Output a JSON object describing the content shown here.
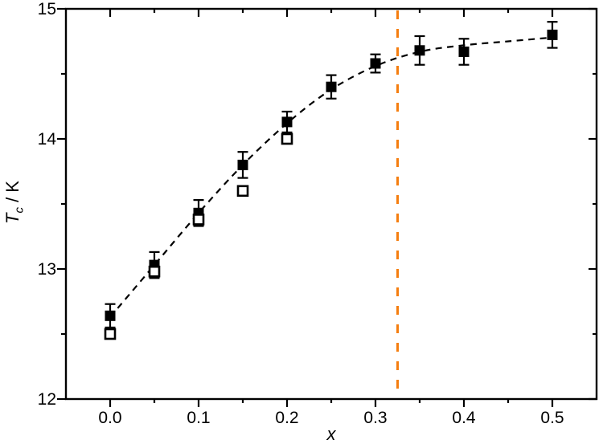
{
  "figure": {
    "background": "#ffffff",
    "axis_color": "#000000",
    "accent_orange": "#F57E0F"
  },
  "axes": {
    "x": {
      "label": "x",
      "tick_labels": [
        "0.0",
        "0.1",
        "0.2",
        "0.3",
        "0.4",
        "0.5"
      ]
    },
    "y": {
      "symbol": "T",
      "subscript": "c",
      "suffix": " / K",
      "tick_labels": [
        "12",
        "13",
        "14",
        "15"
      ]
    }
  },
  "chart_data": {
    "type": "scatter",
    "title": "",
    "xlabel": "x",
    "ylabel": "Tc / K",
    "xlim": [
      -0.05,
      0.55
    ],
    "ylim": [
      12,
      15
    ],
    "grid": false,
    "legend": "none",
    "x_major_ticks": [
      0.0,
      0.1,
      0.2,
      0.3,
      0.4,
      0.5
    ],
    "x_tick_labels": [
      "0.0",
      "0.1",
      "0.2",
      "0.3",
      "0.4",
      "0.5"
    ],
    "x_minor_ticks": [
      0.05,
      0.15,
      0.25,
      0.35,
      0.45
    ],
    "y_major_ticks": [
      12,
      13,
      14,
      15
    ],
    "y_tick_labels": [
      "12",
      "13",
      "14",
      "15"
    ],
    "y_minor_ticks": [
      12.5,
      13.5,
      14.5
    ],
    "series": [
      {
        "name": "Tc-filled-squares",
        "type": "scatter",
        "marker": "filled-square",
        "color": "#000000",
        "x": [
          0.0,
          0.05,
          0.1,
          0.15,
          0.2,
          0.25,
          0.3,
          0.35,
          0.4,
          0.5
        ],
        "y": [
          12.64,
          13.03,
          13.43,
          13.8,
          14.13,
          14.4,
          14.58,
          14.68,
          14.67,
          14.8
        ],
        "yerr": [
          0.09,
          0.1,
          0.1,
          0.1,
          0.08,
          0.09,
          0.07,
          0.11,
          0.1,
          0.1
        ]
      },
      {
        "name": "Tc-open-squares",
        "type": "scatter",
        "marker": "open-square",
        "color": "#000000",
        "x": [
          0.0,
          0.05,
          0.1,
          0.15,
          0.2
        ],
        "y": [
          12.5,
          12.98,
          13.38,
          13.6,
          14.0
        ]
      },
      {
        "name": "guide-curve",
        "type": "line",
        "style": "dashed",
        "color": "#000000",
        "x": [
          0.0,
          0.05,
          0.1,
          0.15,
          0.2,
          0.25,
          0.3,
          0.35,
          0.4,
          0.45,
          0.5
        ],
        "y": [
          12.63,
          13.03,
          13.43,
          13.8,
          14.12,
          14.38,
          14.56,
          14.67,
          14.72,
          14.75,
          14.78
        ]
      }
    ],
    "annotations": [
      {
        "type": "vline",
        "x": 0.325,
        "color": "#F57E0F",
        "style": "dashed"
      }
    ]
  }
}
